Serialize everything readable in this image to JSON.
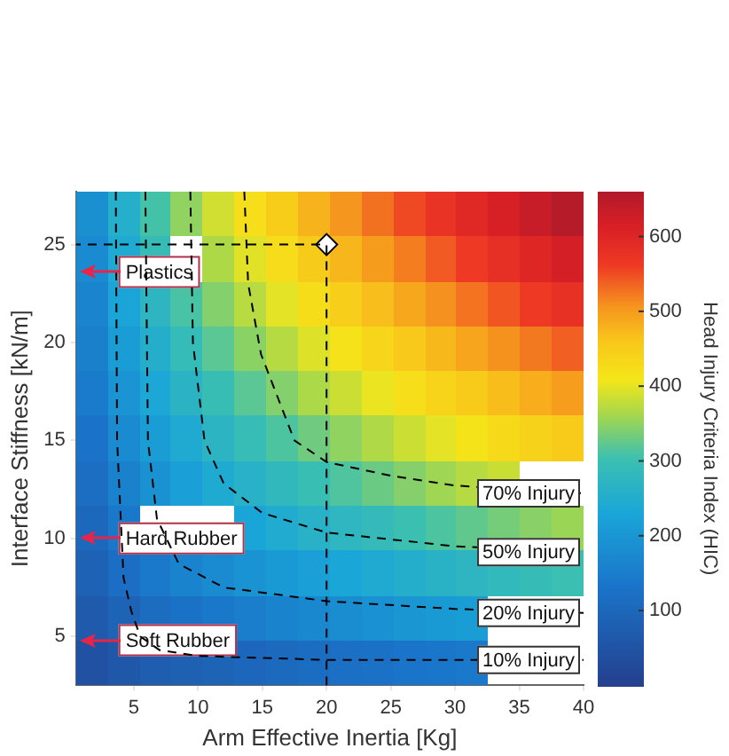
{
  "chart_data": {
    "type": "heatmap",
    "xlabel": "Arm Effective Inertia [Kg]",
    "ylabel": "Interface Stiffness [kN/m]",
    "clabel": "Head Injury Criteria Index (HIC)",
    "xlim": [
      0.5,
      40
    ],
    "xticks": [
      5,
      10,
      15,
      20,
      25,
      30,
      35,
      40
    ],
    "ylim": [
      2.5,
      27.7
    ],
    "yticks": [
      5,
      10,
      15,
      20,
      25
    ],
    "cells": [
      [
        187,
        256,
        308,
        350,
        387,
        420,
        450,
        478,
        504,
        528,
        552,
        574,
        595,
        615,
        634,
        653
      ],
      [
        177,
        242,
        291,
        null,
        366,
        397,
        425,
        452,
        476,
        499,
        521,
        542,
        562,
        581,
        599,
        617
      ],
      [
        166,
        227,
        273,
        310,
        343,
        372,
        399,
        424,
        447,
        468,
        489,
        509,
        527,
        545,
        562,
        579
      ],
      [
        155,
        211,
        254,
        289,
        320,
        347,
        371,
        395,
        416,
        436,
        455,
        474,
        491,
        508,
        523,
        539
      ],
      [
        143,
        195,
        235,
        267,
        295,
        320,
        343,
        365,
        384,
        403,
        421,
        438,
        454,
        469,
        484,
        498
      ],
      [
        130,
        178,
        214,
        243,
        269,
        292,
        313,
        332,
        350,
        367,
        384,
        399,
        414,
        428,
        441,
        454
      ],
      [
        117,
        160,
        192,
        218,
        241,
        262,
        280,
        298,
        314,
        329,
        344,
        358,
        371,
        383,
        null,
        null
      ],
      [
        102,
        140,
        null,
        null,
        null,
        229,
        245,
        261,
        275,
        288,
        301,
        313,
        324,
        335,
        346,
        356
      ],
      [
        86,
        118,
        141,
        161,
        178,
        193,
        207,
        220,
        232,
        243,
        254,
        264,
        273,
        283,
        291,
        300
      ],
      [
        67,
        92,
        111,
        126,
        139,
        151,
        162,
        172,
        181,
        190,
        199,
        207,
        214,
        null,
        null,
        null
      ],
      [
        44,
        61,
        73,
        83,
        92,
        100,
        107,
        113,
        120,
        125,
        131,
        136,
        141,
        null,
        null,
        null
      ]
    ],
    "clim": [
      0,
      660
    ],
    "cticks": [
      100,
      200,
      300,
      400,
      500,
      600
    ],
    "series": [
      {
        "name": "70% Injury",
        "type": "line",
        "color": "#000000",
        "line_style": "dashed",
        "marker": "none",
        "x": [
          13.6,
          13.9,
          14.9,
          17.5,
          20,
          25,
          30,
          40
        ],
        "values": [
          27.7,
          23,
          19.4,
          15,
          13.9,
          13.2,
          12.7,
          12.3
        ]
      },
      {
        "name": "50% Injury",
        "type": "line",
        "color": "#000000",
        "line_style": "dashed",
        "marker": "none",
        "x": [
          9.4,
          9.6,
          10.5,
          12,
          15,
          20,
          30,
          40
        ],
        "values": [
          27.7,
          20,
          15,
          12.8,
          11.3,
          10.3,
          9.6,
          9.3
        ]
      },
      {
        "name": "20% Injury",
        "type": "line",
        "color": "#000000",
        "line_style": "dashed",
        "marker": "none",
        "x": [
          5.9,
          6.1,
          6.8,
          8.5,
          12,
          20,
          30,
          40
        ],
        "values": [
          27.7,
          15,
          11,
          8.7,
          7.5,
          6.8,
          6.4,
          6.2
        ]
      },
      {
        "name": "10% Injury",
        "type": "line",
        "color": "#000000",
        "line_style": "dashed",
        "marker": "none",
        "x": [
          3.6,
          3.7,
          4.2,
          4.8,
          5.5,
          7,
          10,
          20,
          40
        ],
        "values": [
          27.7,
          15,
          8,
          6.3,
          5,
          4.3,
          4,
          3.8,
          3.8
        ]
      },
      {
        "type": "line",
        "color": "#000000",
        "line_style": "dashed",
        "marker": "none",
        "x": [
          20,
          20,
          0.5
        ],
        "values": [
          2.5,
          25,
          25
        ]
      },
      {
        "type": "scatter",
        "color": "#ffffff",
        "marker": "diamond",
        "x": [
          20
        ],
        "values": [
          25
        ]
      }
    ],
    "ref_lines": [
      {
        "axis": "y",
        "value": 23.6,
        "label": "Plastics",
        "color": "#e8244a"
      },
      {
        "axis": "y",
        "value": 10,
        "label": "Hard Rubber",
        "color": "#e8244a"
      },
      {
        "axis": "y",
        "value": 4.8,
        "label": "Soft Rubber",
        "color": "#e8244a"
      }
    ]
  }
}
